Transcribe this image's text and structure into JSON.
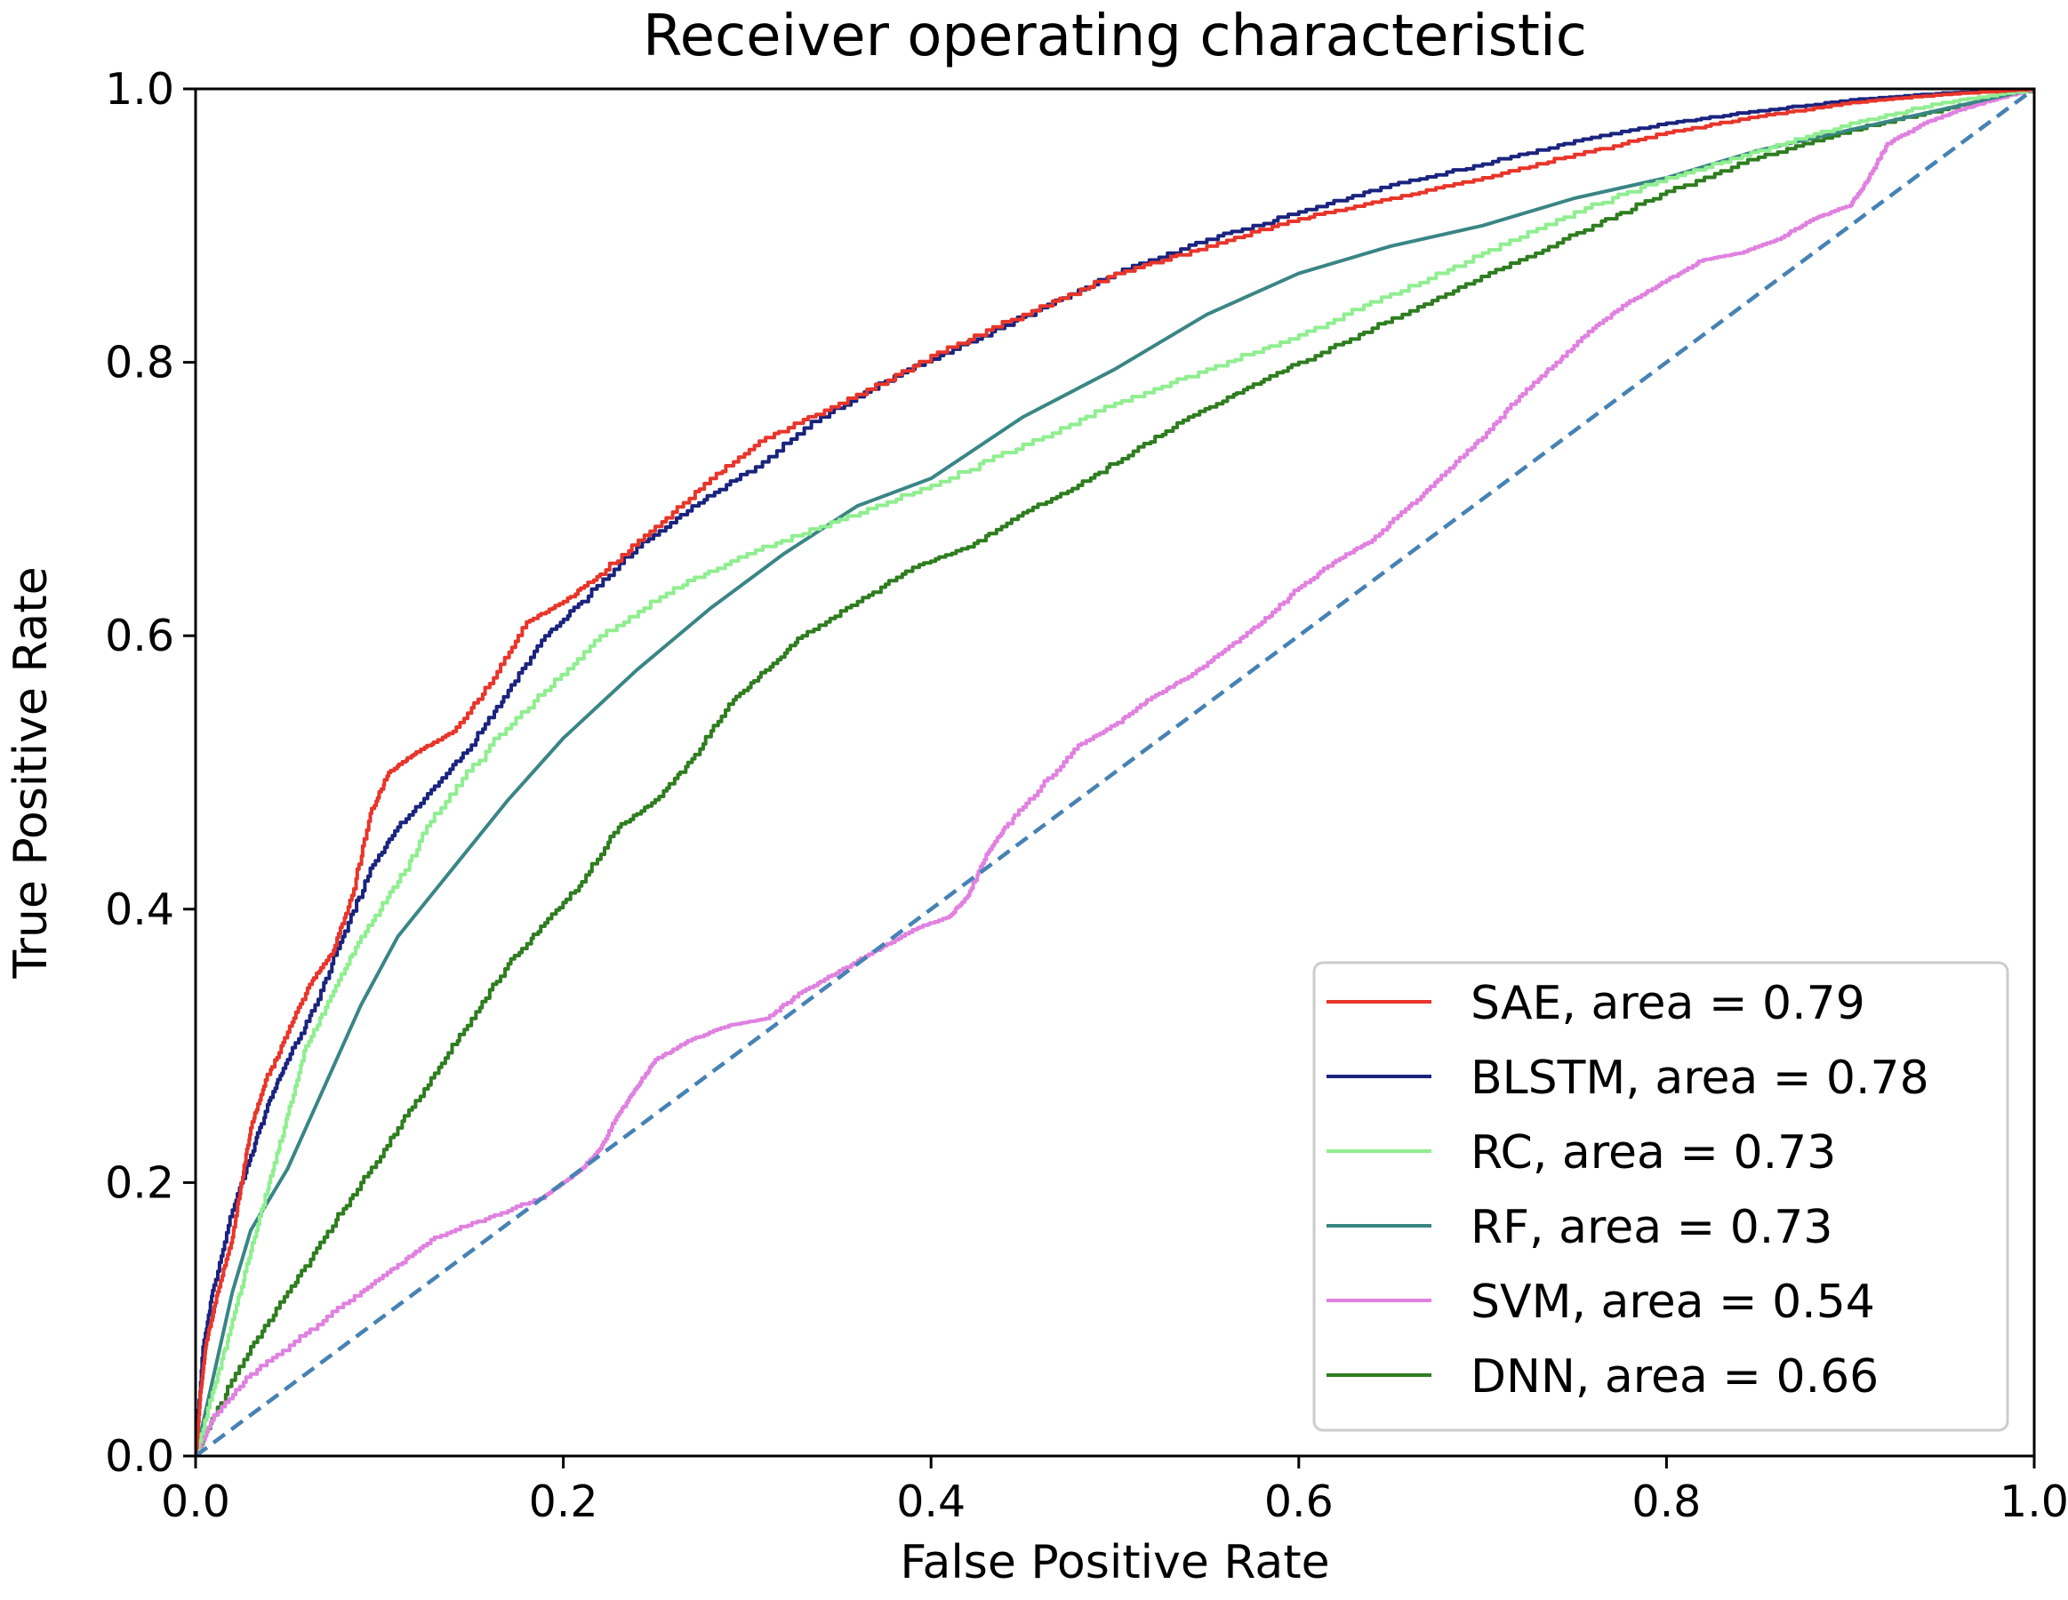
{
  "chart_data": {
    "type": "line",
    "title": "Receiver operating characteristic",
    "xlabel": "False Positive Rate",
    "ylabel": "True Positive Rate",
    "xlim": [
      0.0,
      1.0
    ],
    "ylim": [
      0.0,
      1.0
    ],
    "x_ticks": [
      "0.0",
      "0.2",
      "0.4",
      "0.6",
      "0.8",
      "1.0"
    ],
    "y_ticks": [
      "0.0",
      "0.2",
      "0.4",
      "0.6",
      "0.8",
      "1.0"
    ],
    "grid": false,
    "legend_position": "lower-right",
    "series": [
      {
        "name": "SAE, area = 0.79",
        "color": "#e8352a",
        "points": [
          [
            0,
            0
          ],
          [
            0.003,
            0.05
          ],
          [
            0.006,
            0.085
          ],
          [
            0.012,
            0.12
          ],
          [
            0.02,
            0.16
          ],
          [
            0.025,
            0.2
          ],
          [
            0.03,
            0.24
          ],
          [
            0.038,
            0.275
          ],
          [
            0.05,
            0.31
          ],
          [
            0.062,
            0.345
          ],
          [
            0.075,
            0.37
          ],
          [
            0.085,
            0.41
          ],
          [
            0.095,
            0.47
          ],
          [
            0.105,
            0.5
          ],
          [
            0.12,
            0.515
          ],
          [
            0.14,
            0.53
          ],
          [
            0.16,
            0.565
          ],
          [
            0.18,
            0.61
          ],
          [
            0.2,
            0.625
          ],
          [
            0.22,
            0.645
          ],
          [
            0.25,
            0.68
          ],
          [
            0.28,
            0.715
          ],
          [
            0.31,
            0.745
          ],
          [
            0.35,
            0.77
          ],
          [
            0.4,
            0.805
          ],
          [
            0.45,
            0.835
          ],
          [
            0.5,
            0.865
          ],
          [
            0.55,
            0.885
          ],
          [
            0.6,
            0.905
          ],
          [
            0.65,
            0.92
          ],
          [
            0.7,
            0.935
          ],
          [
            0.75,
            0.952
          ],
          [
            0.8,
            0.968
          ],
          [
            0.85,
            0.98
          ],
          [
            0.9,
            0.99
          ],
          [
            0.95,
            0.996
          ],
          [
            1,
            1
          ]
        ]
      },
      {
        "name": "BLSTM, area = 0.78",
        "color": "#1a237e",
        "points": [
          [
            0,
            0
          ],
          [
            0.004,
            0.08
          ],
          [
            0.01,
            0.125
          ],
          [
            0.02,
            0.18
          ],
          [
            0.03,
            0.22
          ],
          [
            0.04,
            0.26
          ],
          [
            0.05,
            0.29
          ],
          [
            0.065,
            0.33
          ],
          [
            0.08,
            0.38
          ],
          [
            0.095,
            0.43
          ],
          [
            0.11,
            0.46
          ],
          [
            0.13,
            0.49
          ],
          [
            0.15,
            0.52
          ],
          [
            0.17,
            0.56
          ],
          [
            0.19,
            0.6
          ],
          [
            0.21,
            0.625
          ],
          [
            0.24,
            0.665
          ],
          [
            0.27,
            0.695
          ],
          [
            0.3,
            0.72
          ],
          [
            0.34,
            0.76
          ],
          [
            0.38,
            0.79
          ],
          [
            0.42,
            0.815
          ],
          [
            0.46,
            0.84
          ],
          [
            0.5,
            0.865
          ],
          [
            0.55,
            0.89
          ],
          [
            0.6,
            0.91
          ],
          [
            0.65,
            0.93
          ],
          [
            0.7,
            0.945
          ],
          [
            0.75,
            0.962
          ],
          [
            0.8,
            0.975
          ],
          [
            0.85,
            0.984
          ],
          [
            0.9,
            0.992
          ],
          [
            0.95,
            0.997
          ],
          [
            1,
            1
          ]
        ]
      },
      {
        "name": "RC, area = 0.73",
        "color": "#90ee90",
        "points": [
          [
            0,
            0
          ],
          [
            0.01,
            0.05
          ],
          [
            0.02,
            0.1
          ],
          [
            0.03,
            0.15
          ],
          [
            0.04,
            0.2
          ],
          [
            0.05,
            0.25
          ],
          [
            0.06,
            0.3
          ],
          [
            0.075,
            0.34
          ],
          [
            0.09,
            0.38
          ],
          [
            0.11,
            0.42
          ],
          [
            0.13,
            0.47
          ],
          [
            0.16,
            0.52
          ],
          [
            0.19,
            0.56
          ],
          [
            0.22,
            0.6
          ],
          [
            0.26,
            0.635
          ],
          [
            0.3,
            0.66
          ],
          [
            0.35,
            0.685
          ],
          [
            0.4,
            0.71
          ],
          [
            0.45,
            0.74
          ],
          [
            0.5,
            0.77
          ],
          [
            0.55,
            0.795
          ],
          [
            0.6,
            0.82
          ],
          [
            0.65,
            0.85
          ],
          [
            0.7,
            0.88
          ],
          [
            0.75,
            0.91
          ],
          [
            0.8,
            0.935
          ],
          [
            0.85,
            0.955
          ],
          [
            0.9,
            0.975
          ],
          [
            0.95,
            0.99
          ],
          [
            1,
            1
          ]
        ]
      },
      {
        "name": "RF, area = 0.73",
        "color": "#3a8585",
        "points": [
          [
            0,
            0
          ],
          [
            0.01,
            0.06
          ],
          [
            0.02,
            0.12
          ],
          [
            0.03,
            0.165
          ],
          [
            0.05,
            0.21
          ],
          [
            0.07,
            0.27
          ],
          [
            0.09,
            0.33
          ],
          [
            0.11,
            0.38
          ],
          [
            0.14,
            0.43
          ],
          [
            0.17,
            0.48
          ],
          [
            0.2,
            0.525
          ],
          [
            0.24,
            0.575
          ],
          [
            0.28,
            0.62
          ],
          [
            0.32,
            0.66
          ],
          [
            0.36,
            0.695
          ],
          [
            0.4,
            0.715
          ],
          [
            0.45,
            0.76
          ],
          [
            0.5,
            0.795
          ],
          [
            0.55,
            0.835
          ],
          [
            0.6,
            0.865
          ],
          [
            0.65,
            0.885
          ],
          [
            0.7,
            0.9
          ],
          [
            0.75,
            0.92
          ],
          [
            0.8,
            0.935
          ],
          [
            0.85,
            0.955
          ],
          [
            0.9,
            0.97
          ],
          [
            0.95,
            0.985
          ],
          [
            1,
            1
          ]
        ]
      },
      {
        "name": "SVM, area = 0.54",
        "color": "#e081e0",
        "points": [
          [
            0,
            0
          ],
          [
            0.01,
            0.03
          ],
          [
            0.03,
            0.06
          ],
          [
            0.06,
            0.09
          ],
          [
            0.09,
            0.12
          ],
          [
            0.11,
            0.14
          ],
          [
            0.13,
            0.16
          ],
          [
            0.16,
            0.175
          ],
          [
            0.19,
            0.19
          ],
          [
            0.2,
            0.2
          ],
          [
            0.21,
            0.21
          ],
          [
            0.22,
            0.225
          ],
          [
            0.23,
            0.25
          ],
          [
            0.24,
            0.27
          ],
          [
            0.25,
            0.29
          ],
          [
            0.27,
            0.305
          ],
          [
            0.29,
            0.315
          ],
          [
            0.31,
            0.32
          ],
          [
            0.33,
            0.34
          ],
          [
            0.35,
            0.355
          ],
          [
            0.37,
            0.37
          ],
          [
            0.39,
            0.385
          ],
          [
            0.41,
            0.395
          ],
          [
            0.42,
            0.41
          ],
          [
            0.43,
            0.44
          ],
          [
            0.44,
            0.46
          ],
          [
            0.46,
            0.49
          ],
          [
            0.48,
            0.52
          ],
          [
            0.5,
            0.535
          ],
          [
            0.52,
            0.555
          ],
          [
            0.54,
            0.57
          ],
          [
            0.56,
            0.59
          ],
          [
            0.58,
            0.61
          ],
          [
            0.6,
            0.635
          ],
          [
            0.62,
            0.655
          ],
          [
            0.64,
            0.67
          ],
          [
            0.66,
            0.695
          ],
          [
            0.68,
            0.72
          ],
          [
            0.7,
            0.745
          ],
          [
            0.72,
            0.775
          ],
          [
            0.74,
            0.8
          ],
          [
            0.76,
            0.825
          ],
          [
            0.78,
            0.845
          ],
          [
            0.8,
            0.86
          ],
          [
            0.82,
            0.875
          ],
          [
            0.84,
            0.88
          ],
          [
            0.86,
            0.89
          ],
          [
            0.88,
            0.905
          ],
          [
            0.9,
            0.915
          ],
          [
            0.91,
            0.935
          ],
          [
            0.92,
            0.96
          ],
          [
            0.94,
            0.975
          ],
          [
            0.96,
            0.985
          ],
          [
            0.98,
            0.993
          ],
          [
            1,
            1
          ]
        ]
      },
      {
        "name": "DNN, area = 0.66",
        "color": "#2e7d1f",
        "points": [
          [
            0,
            0
          ],
          [
            0.01,
            0.03
          ],
          [
            0.03,
            0.08
          ],
          [
            0.05,
            0.12
          ],
          [
            0.07,
            0.16
          ],
          [
            0.09,
            0.2
          ],
          [
            0.11,
            0.24
          ],
          [
            0.13,
            0.28
          ],
          [
            0.15,
            0.32
          ],
          [
            0.17,
            0.36
          ],
          [
            0.19,
            0.39
          ],
          [
            0.21,
            0.42
          ],
          [
            0.23,
            0.46
          ],
          [
            0.25,
            0.48
          ],
          [
            0.27,
            0.51
          ],
          [
            0.29,
            0.55
          ],
          [
            0.31,
            0.575
          ],
          [
            0.33,
            0.6
          ],
          [
            0.36,
            0.625
          ],
          [
            0.39,
            0.65
          ],
          [
            0.42,
            0.665
          ],
          [
            0.45,
            0.69
          ],
          [
            0.48,
            0.71
          ],
          [
            0.51,
            0.735
          ],
          [
            0.54,
            0.76
          ],
          [
            0.57,
            0.78
          ],
          [
            0.6,
            0.8
          ],
          [
            0.64,
            0.825
          ],
          [
            0.68,
            0.85
          ],
          [
            0.72,
            0.875
          ],
          [
            0.76,
            0.9
          ],
          [
            0.8,
            0.925
          ],
          [
            0.85,
            0.95
          ],
          [
            0.9,
            0.97
          ],
          [
            0.95,
            0.985
          ],
          [
            1,
            1
          ]
        ]
      }
    ],
    "reference_line": {
      "color": "#4682b4",
      "style": "dashed",
      "points": [
        [
          0,
          0
        ],
        [
          1,
          1
        ]
      ]
    }
  }
}
